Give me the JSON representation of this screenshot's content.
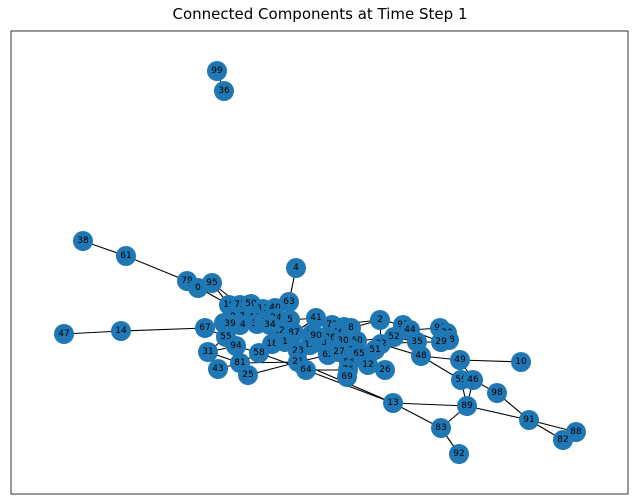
{
  "title": "Connected Components at Time Step 1",
  "colors": {
    "node": "#1f77b4",
    "edge": "#000000",
    "frame": "#000000"
  },
  "nodes": [
    "99",
    "36",
    "4",
    "38",
    "61",
    "79",
    "0",
    "95",
    "47",
    "14",
    "63",
    "19",
    "75",
    "50",
    "11",
    "40",
    "9",
    "70",
    "13",
    "24",
    "64",
    "37",
    "67",
    "7",
    "39",
    "55",
    "5",
    "41",
    "72",
    "6",
    "66",
    "8",
    "2",
    "93",
    "44",
    "96",
    "20",
    "28",
    "22",
    "87",
    "74",
    "86",
    "60",
    "52",
    "30",
    "32",
    "29",
    "35",
    "18",
    "1",
    "15",
    "68",
    "48",
    "31",
    "94",
    "58",
    "23",
    "62",
    "27",
    "77",
    "65",
    "51",
    "49",
    "10",
    "81",
    "21",
    "56",
    "12",
    "26",
    "59",
    "46",
    "43",
    "25",
    "64b",
    "76",
    "69",
    "98",
    "13b",
    "89",
    "91",
    "83",
    "88",
    "82",
    "92",
    "90",
    "3",
    "34"
  ],
  "node_labels": {
    "99": "99",
    "36": "36",
    "4": "4",
    "38": "38",
    "61": "61",
    "79": "79",
    "0": "0",
    "95": "95",
    "47": "47",
    "14": "14",
    "63": "63",
    "19": "19",
    "75": "75",
    "50": "50",
    "11": "11",
    "40": "40",
    "9": "9",
    "70": "70",
    "13": "13",
    "24": "24",
    "64": "64",
    "37": "37",
    "67": "67",
    "7": "7",
    "39": "39",
    "55": "55",
    "5": "5",
    "41": "41",
    "72": "72",
    "6": "6",
    "66": "66",
    "8": "8",
    "2": "2",
    "93": "93",
    "44": "44",
    "96": "96",
    "20": "20",
    "28": "28",
    "22": "22",
    "87": "87",
    "74": "74",
    "86": "86",
    "60": "60",
    "52": "52",
    "30": "30",
    "32": "32",
    "29": "29",
    "35": "35",
    "18": "18",
    "1": "1",
    "15": "15",
    "68": "68",
    "48": "48",
    "31": "31",
    "94": "94",
    "58": "58",
    "23": "23",
    "62": "62",
    "27": "27",
    "77": "77",
    "65": "65",
    "51": "51",
    "49": "49",
    "10": "10",
    "81": "81",
    "21": "21",
    "56": "56",
    "12": "12",
    "26": "26",
    "59": "59",
    "46": "46",
    "43": "43",
    "25": "25",
    "64b": "64",
    "76": "76",
    "69": "69",
    "98": "98",
    "13b": "13",
    "89": "89",
    "91": "91",
    "83": "83",
    "88": "88",
    "82": "82",
    "92": "92",
    "90": "90",
    "3": "3",
    "34": "34"
  }
}
